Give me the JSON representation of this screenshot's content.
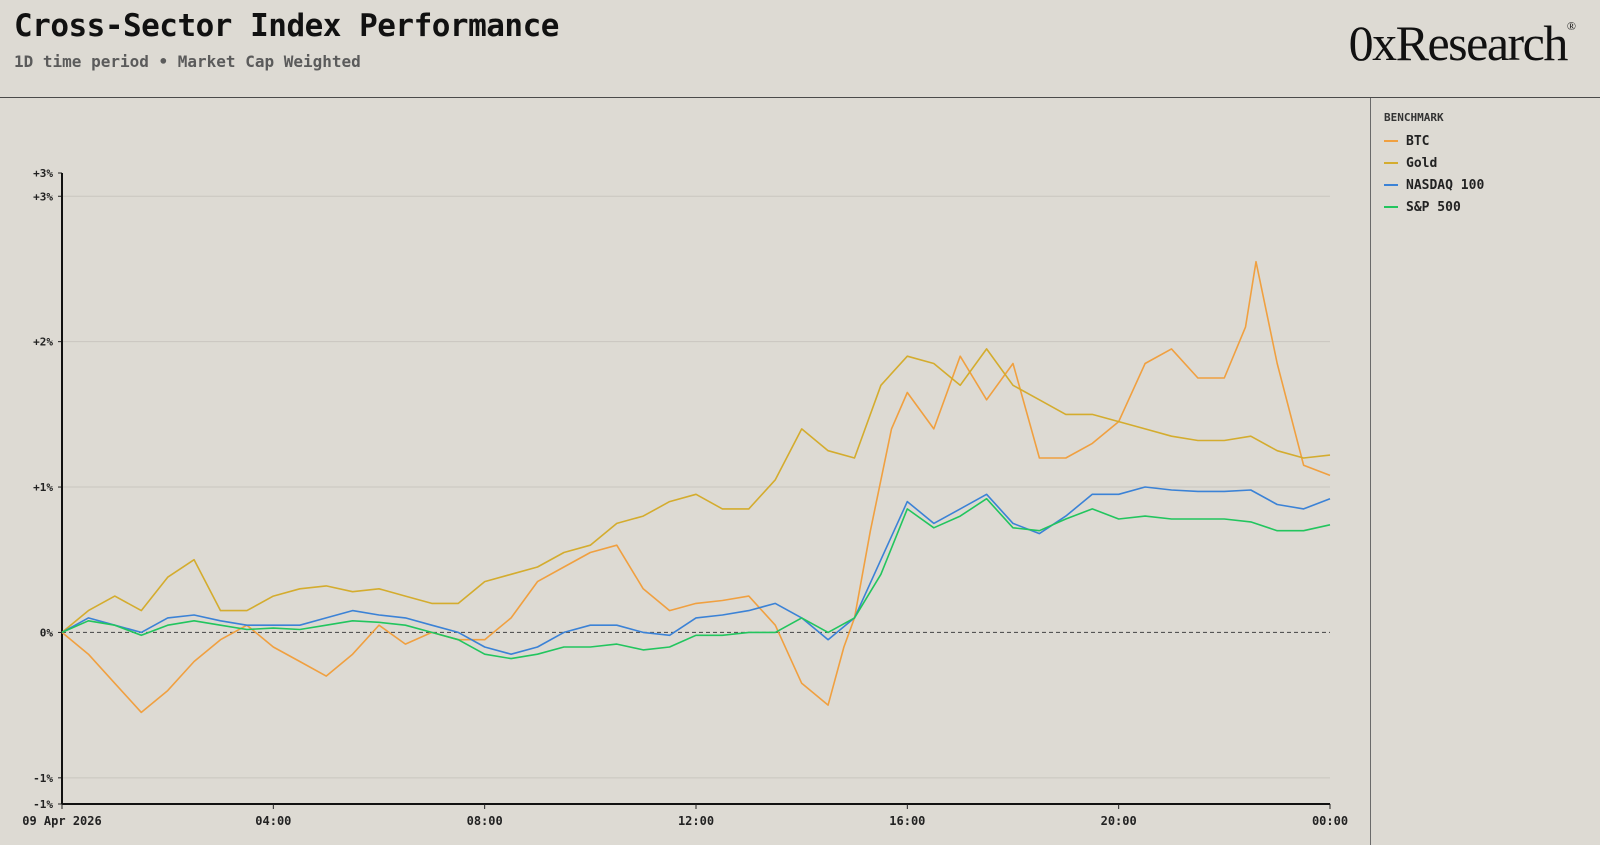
{
  "header": {
    "title": "Cross-Sector Index Performance",
    "subtitle": "1D time period • Market Cap Weighted",
    "logo": "0xResearch",
    "logo_mark": "®"
  },
  "legend": {
    "title": "BENCHMARK"
  },
  "chart_data": {
    "type": "line",
    "x_start": "09 Apr 2026",
    "x_range_hours": [
      0,
      24
    ],
    "x_tick_labels": [
      "09 Apr 2026",
      "04:00",
      "08:00",
      "12:00",
      "16:00",
      "20:00",
      "00:00"
    ],
    "y_tick_labels": [
      "+3%",
      "+3%",
      "+2%",
      "+1%",
      "0%",
      "-1%",
      "-1%"
    ],
    "ylim": [
      -1.18,
      3.16
    ],
    "grid": true,
    "zero_line": "dashed",
    "legend_position": "right",
    "series": [
      {
        "name": "BTC",
        "color": "#f0a040",
        "points": [
          [
            0,
            0
          ],
          [
            0.5,
            -0.15
          ],
          [
            1,
            -0.35
          ],
          [
            1.5,
            -0.55
          ],
          [
            2,
            -0.4
          ],
          [
            2.5,
            -0.2
          ],
          [
            3,
            -0.05
          ],
          [
            3.5,
            0.05
          ],
          [
            4,
            -0.1
          ],
          [
            4.5,
            -0.2
          ],
          [
            5,
            -0.3
          ],
          [
            5.5,
            -0.15
          ],
          [
            6,
            0.05
          ],
          [
            6.5,
            -0.08
          ],
          [
            7,
            0
          ],
          [
            7.5,
            -0.05
          ],
          [
            8,
            -0.05
          ],
          [
            8.5,
            0.1
          ],
          [
            9,
            0.35
          ],
          [
            9.5,
            0.45
          ],
          [
            10,
            0.55
          ],
          [
            10.5,
            0.6
          ],
          [
            11,
            0.3
          ],
          [
            11.5,
            0.15
          ],
          [
            12,
            0.2
          ],
          [
            12.5,
            0.22
          ],
          [
            13,
            0.25
          ],
          [
            13.5,
            0.05
          ],
          [
            14,
            -0.35
          ],
          [
            14.5,
            -0.5
          ],
          [
            14.8,
            -0.1
          ],
          [
            15,
            0.1
          ],
          [
            15.3,
            0.7
          ],
          [
            15.7,
            1.4
          ],
          [
            16,
            1.65
          ],
          [
            16.5,
            1.4
          ],
          [
            17,
            1.9
          ],
          [
            17.5,
            1.6
          ],
          [
            18,
            1.85
          ],
          [
            18.5,
            1.2
          ],
          [
            19,
            1.2
          ],
          [
            19.5,
            1.3
          ],
          [
            20,
            1.45
          ],
          [
            20.5,
            1.85
          ],
          [
            21,
            1.95
          ],
          [
            21.5,
            1.75
          ],
          [
            22,
            1.75
          ],
          [
            22.4,
            2.1
          ],
          [
            22.6,
            2.55
          ],
          [
            23,
            1.85
          ],
          [
            23.5,
            1.15
          ],
          [
            24,
            1.08
          ]
        ]
      },
      {
        "name": "Gold",
        "color": "#d4ac2e",
        "points": [
          [
            0,
            0
          ],
          [
            0.5,
            0.15
          ],
          [
            1,
            0.25
          ],
          [
            1.5,
            0.15
          ],
          [
            2,
            0.38
          ],
          [
            2.5,
            0.5
          ],
          [
            3,
            0.15
          ],
          [
            3.5,
            0.15
          ],
          [
            4,
            0.25
          ],
          [
            4.5,
            0.3
          ],
          [
            5,
            0.32
          ],
          [
            5.5,
            0.28
          ],
          [
            6,
            0.3
          ],
          [
            6.5,
            0.25
          ],
          [
            7,
            0.2
          ],
          [
            7.5,
            0.2
          ],
          [
            8,
            0.35
          ],
          [
            8.5,
            0.4
          ],
          [
            9,
            0.45
          ],
          [
            9.5,
            0.55
          ],
          [
            10,
            0.6
          ],
          [
            10.5,
            0.75
          ],
          [
            11,
            0.8
          ],
          [
            11.5,
            0.9
          ],
          [
            12,
            0.95
          ],
          [
            12.5,
            0.85
          ],
          [
            13,
            0.85
          ],
          [
            13.5,
            1.05
          ],
          [
            14,
            1.4
          ],
          [
            14.5,
            1.25
          ],
          [
            15,
            1.2
          ],
          [
            15.5,
            1.7
          ],
          [
            16,
            1.9
          ],
          [
            16.5,
            1.85
          ],
          [
            17,
            1.7
          ],
          [
            17.5,
            1.95
          ],
          [
            18,
            1.7
          ],
          [
            18.5,
            1.6
          ],
          [
            19,
            1.5
          ],
          [
            19.5,
            1.5
          ],
          [
            20,
            1.45
          ],
          [
            20.5,
            1.4
          ],
          [
            21,
            1.35
          ],
          [
            21.5,
            1.32
          ],
          [
            22,
            1.32
          ],
          [
            22.5,
            1.35
          ],
          [
            23,
            1.25
          ],
          [
            23.5,
            1.2
          ],
          [
            24,
            1.22
          ]
        ]
      },
      {
        "name": "NASDAQ 100",
        "color": "#3b82d6",
        "points": [
          [
            0,
            0
          ],
          [
            0.5,
            0.1
          ],
          [
            1,
            0.05
          ],
          [
            1.5,
            0
          ],
          [
            2,
            0.1
          ],
          [
            2.5,
            0.12
          ],
          [
            3,
            0.08
          ],
          [
            3.5,
            0.05
          ],
          [
            4,
            0.05
          ],
          [
            4.5,
            0.05
          ],
          [
            5,
            0.1
          ],
          [
            5.5,
            0.15
          ],
          [
            6,
            0.12
          ],
          [
            6.5,
            0.1
          ],
          [
            7,
            0.05
          ],
          [
            7.5,
            0
          ],
          [
            8,
            -0.1
          ],
          [
            8.5,
            -0.15
          ],
          [
            9,
            -0.1
          ],
          [
            9.5,
            0
          ],
          [
            10,
            0.05
          ],
          [
            10.5,
            0.05
          ],
          [
            11,
            0
          ],
          [
            11.5,
            -0.02
          ],
          [
            12,
            0.1
          ],
          [
            12.5,
            0.12
          ],
          [
            13,
            0.15
          ],
          [
            13.5,
            0.2
          ],
          [
            14,
            0.1
          ],
          [
            14.5,
            -0.05
          ],
          [
            15,
            0.1
          ],
          [
            15.5,
            0.5
          ],
          [
            16,
            0.9
          ],
          [
            16.5,
            0.75
          ],
          [
            17,
            0.85
          ],
          [
            17.5,
            0.95
          ],
          [
            18,
            0.75
          ],
          [
            18.5,
            0.68
          ],
          [
            19,
            0.8
          ],
          [
            19.5,
            0.95
          ],
          [
            20,
            0.95
          ],
          [
            20.5,
            1
          ],
          [
            21,
            0.98
          ],
          [
            21.5,
            0.97
          ],
          [
            22,
            0.97
          ],
          [
            22.5,
            0.98
          ],
          [
            23,
            0.88
          ],
          [
            23.5,
            0.85
          ],
          [
            24,
            0.92
          ]
        ]
      },
      {
        "name": "S&P 500",
        "color": "#22c55e",
        "points": [
          [
            0,
            0
          ],
          [
            0.5,
            0.08
          ],
          [
            1,
            0.05
          ],
          [
            1.5,
            -0.02
          ],
          [
            2,
            0.05
          ],
          [
            2.5,
            0.08
          ],
          [
            3,
            0.05
          ],
          [
            3.5,
            0.02
          ],
          [
            4,
            0.03
          ],
          [
            4.5,
            0.02
          ],
          [
            5,
            0.05
          ],
          [
            5.5,
            0.08
          ],
          [
            6,
            0.07
          ],
          [
            6.5,
            0.05
          ],
          [
            7,
            0
          ],
          [
            7.5,
            -0.05
          ],
          [
            8,
            -0.15
          ],
          [
            8.5,
            -0.18
          ],
          [
            9,
            -0.15
          ],
          [
            9.5,
            -0.1
          ],
          [
            10,
            -0.1
          ],
          [
            10.5,
            -0.08
          ],
          [
            11,
            -0.12
          ],
          [
            11.5,
            -0.1
          ],
          [
            12,
            -0.02
          ],
          [
            12.5,
            -0.02
          ],
          [
            13,
            0
          ],
          [
            13.5,
            0
          ],
          [
            14,
            0.1
          ],
          [
            14.5,
            0
          ],
          [
            15,
            0.1
          ],
          [
            15.5,
            0.4
          ],
          [
            16,
            0.85
          ],
          [
            16.5,
            0.72
          ],
          [
            17,
            0.8
          ],
          [
            17.5,
            0.92
          ],
          [
            18,
            0.72
          ],
          [
            18.5,
            0.7
          ],
          [
            19,
            0.78
          ],
          [
            19.5,
            0.85
          ],
          [
            20,
            0.78
          ],
          [
            20.5,
            0.8
          ],
          [
            21,
            0.78
          ],
          [
            21.5,
            0.78
          ],
          [
            22,
            0.78
          ],
          [
            22.5,
            0.76
          ],
          [
            23,
            0.7
          ],
          [
            23.5,
            0.7
          ],
          [
            24,
            0.74
          ]
        ]
      }
    ]
  }
}
